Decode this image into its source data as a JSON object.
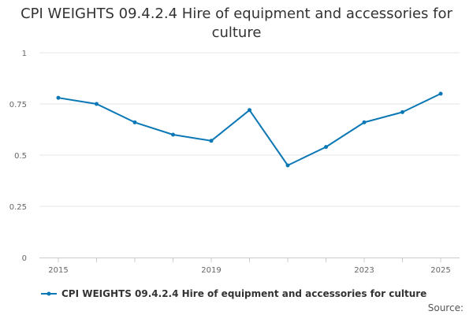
{
  "chart_data": {
    "type": "line",
    "title": "CPI WEIGHTS 09.4.2.4 Hire of equipment and accessories for culture",
    "xlabel": "",
    "ylabel": "",
    "x": [
      2015,
      2016,
      2017,
      2018,
      2019,
      2020,
      2021,
      2022,
      2023,
      2024,
      2025
    ],
    "x_tick_labels": [
      "2015",
      "2019",
      "2023",
      "2025"
    ],
    "x_tick_values": [
      2015,
      2019,
      2023,
      2025
    ],
    "ylim": [
      0,
      1
    ],
    "y_tick_values": [
      0,
      0.25,
      0.5,
      0.75,
      1
    ],
    "y_tick_labels": [
      "0",
      "0.25",
      "0.5",
      "0.75",
      "1"
    ],
    "series": [
      {
        "name": "CPI WEIGHTS 09.4.2.4 Hire of equipment and accessories for culture",
        "color": "#0b78b5",
        "values": [
          0.78,
          0.75,
          0.66,
          0.6,
          0.57,
          0.72,
          0.45,
          0.54,
          0.66,
          0.71,
          0.8
        ]
      }
    ],
    "grid": true,
    "legend_position": "bottom-left",
    "source_label": "Source:"
  }
}
